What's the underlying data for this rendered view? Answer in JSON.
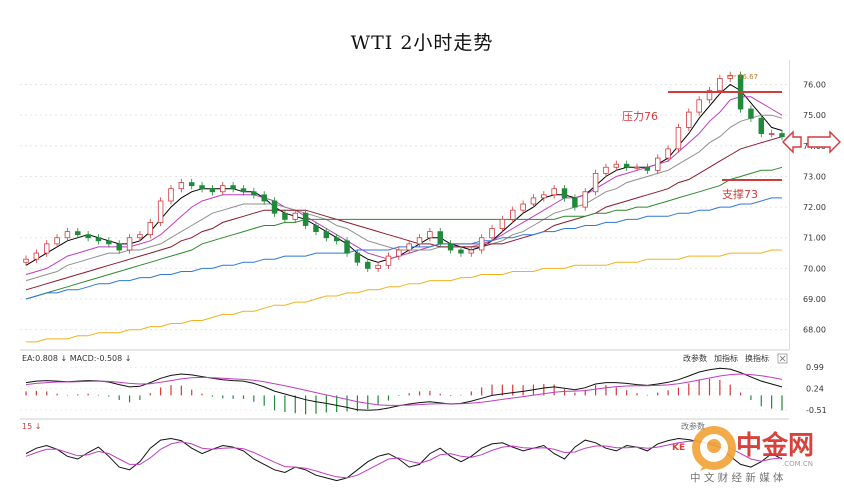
{
  "chart_data": [
    {
      "type": "candlestick",
      "title": "WTI 2小时走势",
      "ylim": [
        67.5,
        76.8
      ],
      "y_ticks": [
        "76.00",
        "75.00",
        "74.00",
        "73.00",
        "72.00",
        "71.00",
        "70.00",
        "69.00",
        "68.00"
      ],
      "high_label": "76.67",
      "annotations": [
        {
          "text": "压力76",
          "level": 76.0
        },
        {
          "text": "支撑73",
          "level": 73.0
        }
      ],
      "close": [
        70.3,
        70.5,
        70.8,
        71.0,
        71.2,
        71.1,
        71.0,
        70.9,
        70.8,
        70.6,
        71.0,
        71.1,
        71.5,
        72.2,
        72.6,
        72.8,
        72.7,
        72.6,
        72.5,
        72.7,
        72.6,
        72.5,
        72.4,
        72.2,
        71.8,
        71.6,
        71.8,
        71.4,
        71.2,
        71.0,
        70.9,
        70.5,
        70.2,
        70.0,
        70.1,
        70.4,
        70.6,
        70.8,
        71.0,
        71.2,
        70.8,
        70.6,
        70.5,
        70.6,
        71.0,
        71.3,
        71.6,
        71.9,
        72.1,
        72.3,
        72.4,
        72.6,
        72.3,
        72.0,
        72.5,
        73.1,
        73.3,
        73.4,
        73.3,
        73.3,
        73.2,
        73.6,
        73.9,
        74.6,
        75.1,
        75.5,
        75.8,
        76.2,
        76.3,
        75.2,
        74.9,
        74.4,
        74.4,
        74.3
      ],
      "sma_series": [
        {
          "color": "#000000",
          "values": [
            70.1,
            70.3,
            70.5,
            70.7,
            70.9,
            71.0,
            71.1,
            71.0,
            70.9,
            70.8,
            70.8,
            70.9,
            71.2,
            71.6,
            72.0,
            72.3,
            72.5,
            72.6,
            72.6,
            72.6,
            72.6,
            72.5,
            72.5,
            72.3,
            72.0,
            71.8,
            71.7,
            71.6,
            71.4,
            71.2,
            71.0,
            70.8,
            70.5,
            70.3,
            70.2,
            70.3,
            70.4,
            70.6,
            70.8,
            71.0,
            71.0,
            70.8,
            70.7,
            70.6,
            70.7,
            70.9,
            71.2,
            71.5,
            71.8,
            72.0,
            72.3,
            72.4,
            72.4,
            72.3,
            72.4,
            72.7,
            73.0,
            73.2,
            73.3,
            73.3,
            73.3,
            73.4,
            73.6,
            74.0,
            74.4,
            74.9,
            75.3,
            75.7,
            76.0,
            75.8,
            75.4,
            75.0,
            74.6,
            74.5
          ]
        },
        {
          "color": "#c13ec1",
          "values": [
            69.8,
            69.9,
            70.0,
            70.2,
            70.4,
            70.5,
            70.6,
            70.7,
            70.7,
            70.7,
            70.7,
            70.8,
            70.9,
            71.1,
            71.4,
            71.7,
            72.0,
            72.2,
            72.3,
            72.4,
            72.4,
            72.4,
            72.4,
            72.3,
            72.2,
            72.0,
            71.9,
            71.7,
            71.5,
            71.3,
            71.1,
            70.9,
            70.7,
            70.5,
            70.4,
            70.3,
            70.4,
            70.5,
            70.6,
            70.7,
            70.8,
            70.8,
            70.8,
            70.8,
            70.8,
            70.9,
            71.1,
            71.3,
            71.5,
            71.7,
            71.9,
            72.1,
            72.3,
            72.3,
            72.4,
            72.6,
            72.8,
            73.0,
            73.1,
            73.2,
            73.3,
            73.4,
            73.5,
            73.8,
            74.1,
            74.4,
            74.8,
            75.1,
            75.5,
            75.6,
            75.6,
            75.4,
            75.2,
            75.0
          ]
        },
        {
          "color": "#8f8f8f",
          "values": [
            69.6,
            69.7,
            69.8,
            69.9,
            70.1,
            70.2,
            70.3,
            70.4,
            70.5,
            70.5,
            70.6,
            70.6,
            70.7,
            70.8,
            71.0,
            71.2,
            71.4,
            71.6,
            71.8,
            71.9,
            72.0,
            72.1,
            72.1,
            72.1,
            72.1,
            72.0,
            71.9,
            71.8,
            71.7,
            71.6,
            71.4,
            71.3,
            71.1,
            70.9,
            70.8,
            70.7,
            70.6,
            70.6,
            70.6,
            70.6,
            70.7,
            70.7,
            70.7,
            70.7,
            70.8,
            70.8,
            70.9,
            71.1,
            71.2,
            71.4,
            71.6,
            71.8,
            71.9,
            72.0,
            72.1,
            72.3,
            72.5,
            72.6,
            72.8,
            72.9,
            73.0,
            73.1,
            73.2,
            73.4,
            73.6,
            73.8,
            74.1,
            74.3,
            74.6,
            74.8,
            74.9,
            75.0,
            75.0,
            74.9
          ]
        },
        {
          "color": "#8b1a2e",
          "values": [
            69.3,
            69.4,
            69.5,
            69.6,
            69.7,
            69.8,
            69.9,
            70.0,
            70.1,
            70.2,
            70.3,
            70.4,
            70.5,
            70.6,
            70.7,
            70.9,
            71.0,
            71.2,
            71.3,
            71.5,
            71.6,
            71.7,
            71.8,
            71.9,
            71.9,
            71.9,
            71.9,
            71.9,
            71.8,
            71.7,
            71.6,
            71.5,
            71.4,
            71.3,
            71.2,
            71.1,
            71.0,
            70.9,
            70.8,
            70.8,
            70.7,
            70.7,
            70.7,
            70.7,
            70.7,
            70.8,
            70.8,
            70.9,
            71.0,
            71.1,
            71.2,
            71.4,
            71.5,
            71.6,
            71.7,
            71.8,
            72.0,
            72.1,
            72.2,
            72.3,
            72.4,
            72.5,
            72.6,
            72.8,
            72.9,
            73.1,
            73.3,
            73.5,
            73.7,
            73.9,
            74.0,
            74.1,
            74.2,
            74.3
          ]
        },
        {
          "color": "#2c8a2c",
          "values": [
            69.0,
            69.1,
            69.2,
            69.3,
            69.4,
            69.5,
            69.6,
            69.7,
            69.8,
            69.9,
            70.0,
            70.1,
            70.2,
            70.3,
            70.4,
            70.5,
            70.6,
            70.8,
            70.9,
            71.0,
            71.1,
            71.2,
            71.3,
            71.4,
            71.4,
            71.5,
            71.5,
            71.6,
            71.6,
            71.6,
            71.6,
            71.6,
            71.6,
            71.6,
            71.6,
            71.6,
            71.6,
            71.6,
            71.6,
            71.6,
            71.6,
            71.6,
            71.6,
            71.6,
            71.6,
            71.6,
            71.6,
            71.6,
            71.6,
            71.6,
            71.6,
            71.6,
            71.7,
            71.7,
            71.7,
            71.8,
            71.8,
            71.9,
            71.9,
            72.0,
            72.0,
            72.1,
            72.2,
            72.3,
            72.4,
            72.5,
            72.6,
            72.7,
            72.9,
            73.0,
            73.1,
            73.2,
            73.2,
            73.3
          ]
        },
        {
          "color": "#2f78d4",
          "values": [
            69.0,
            69.1,
            69.2,
            69.2,
            69.3,
            69.3,
            69.4,
            69.5,
            69.5,
            69.6,
            69.6,
            69.7,
            69.7,
            69.8,
            69.8,
            69.9,
            69.9,
            70.0,
            70.0,
            70.1,
            70.1,
            70.2,
            70.2,
            70.3,
            70.3,
            70.4,
            70.4,
            70.4,
            70.5,
            70.5,
            70.5,
            70.5,
            70.6,
            70.6,
            70.6,
            70.6,
            70.7,
            70.7,
            70.7,
            70.7,
            70.8,
            70.8,
            70.8,
            70.8,
            70.9,
            70.9,
            71.0,
            71.0,
            71.1,
            71.1,
            71.2,
            71.2,
            71.3,
            71.3,
            71.4,
            71.4,
            71.5,
            71.5,
            71.6,
            71.6,
            71.7,
            71.7,
            71.7,
            71.8,
            71.8,
            71.9,
            71.9,
            72.0,
            72.0,
            72.1,
            72.1,
            72.2,
            72.3,
            72.3
          ]
        },
        {
          "color": "#f0b31f",
          "values": [
            67.6,
            67.6,
            67.7,
            67.7,
            67.7,
            67.8,
            67.8,
            67.9,
            67.9,
            67.9,
            68.0,
            68.0,
            68.1,
            68.1,
            68.2,
            68.2,
            68.3,
            68.3,
            68.4,
            68.5,
            68.5,
            68.6,
            68.6,
            68.7,
            68.8,
            68.8,
            68.9,
            68.9,
            69.0,
            69.1,
            69.1,
            69.2,
            69.2,
            69.3,
            69.3,
            69.4,
            69.4,
            69.5,
            69.5,
            69.6,
            69.6,
            69.6,
            69.7,
            69.7,
            69.8,
            69.8,
            69.8,
            69.9,
            69.9,
            69.9,
            70.0,
            70.0,
            70.0,
            70.1,
            70.1,
            70.1,
            70.1,
            70.2,
            70.2,
            70.2,
            70.3,
            70.3,
            70.3,
            70.3,
            70.4,
            70.4,
            70.4,
            70.4,
            70.5,
            70.5,
            70.5,
            70.5,
            70.6,
            70.6
          ]
        }
      ]
    },
    {
      "type": "macd",
      "label_text": "EA:0.808 ↓ MACD:-0.508 ↓",
      "ylim": [
        -0.65,
        1.1
      ],
      "y_ticks": [
        "0.99",
        "0.24",
        "-0.51"
      ],
      "buttons": [
        "改参数",
        "加指标",
        "换指标"
      ],
      "dif": [
        0.45,
        0.5,
        0.52,
        0.5,
        0.48,
        0.5,
        0.52,
        0.51,
        0.47,
        0.38,
        0.3,
        0.32,
        0.45,
        0.6,
        0.7,
        0.75,
        0.72,
        0.66,
        0.6,
        0.55,
        0.52,
        0.5,
        0.42,
        0.3,
        0.15,
        0.05,
        -0.05,
        -0.15,
        -0.22,
        -0.28,
        -0.35,
        -0.42,
        -0.5,
        -0.52,
        -0.5,
        -0.44,
        -0.36,
        -0.3,
        -0.25,
        -0.22,
        -0.26,
        -0.3,
        -0.28,
        -0.2,
        -0.1,
        0.0,
        0.05,
        0.1,
        0.14,
        0.2,
        0.26,
        0.3,
        0.25,
        0.2,
        0.27,
        0.4,
        0.45,
        0.45,
        0.42,
        0.38,
        0.35,
        0.4,
        0.46,
        0.55,
        0.68,
        0.82,
        0.9,
        0.95,
        0.92,
        0.8,
        0.65,
        0.5,
        0.4,
        0.3
      ],
      "dea": [
        0.38,
        0.42,
        0.45,
        0.47,
        0.47,
        0.48,
        0.49,
        0.5,
        0.49,
        0.46,
        0.42,
        0.4,
        0.41,
        0.46,
        0.52,
        0.58,
        0.62,
        0.63,
        0.62,
        0.6,
        0.58,
        0.56,
        0.53,
        0.48,
        0.41,
        0.34,
        0.26,
        0.18,
        0.1,
        0.02,
        -0.06,
        -0.14,
        -0.22,
        -0.28,
        -0.33,
        -0.35,
        -0.35,
        -0.34,
        -0.32,
        -0.3,
        -0.29,
        -0.29,
        -0.29,
        -0.27,
        -0.24,
        -0.19,
        -0.14,
        -0.09,
        -0.04,
        0.01,
        0.06,
        0.11,
        0.14,
        0.15,
        0.17,
        0.22,
        0.27,
        0.31,
        0.33,
        0.34,
        0.34,
        0.35,
        0.37,
        0.41,
        0.47,
        0.54,
        0.61,
        0.68,
        0.73,
        0.75,
        0.73,
        0.69,
        0.63,
        0.56
      ]
    },
    {
      "type": "kdj",
      "label_text": "15 ↓",
      "k": [
        60,
        70,
        75,
        68,
        55,
        50,
        62,
        72,
        55,
        35,
        30,
        45,
        70,
        85,
        88,
        84,
        70,
        60,
        68,
        75,
        72,
        65,
        50,
        40,
        30,
        25,
        35,
        30,
        20,
        15,
        10,
        15,
        30,
        45,
        55,
        60,
        50,
        35,
        40,
        60,
        70,
        55,
        45,
        55,
        70,
        78,
        80,
        72,
        65,
        70,
        75,
        60,
        50,
        72,
        85,
        80,
        70,
        65,
        75,
        72,
        65,
        78,
        84,
        88,
        86,
        82,
        78,
        72,
        55,
        40,
        35,
        45,
        60,
        50
      ],
      "d": [
        55,
        62,
        68,
        68,
        62,
        56,
        58,
        64,
        60,
        50,
        40,
        40,
        52,
        68,
        78,
        82,
        78,
        70,
        68,
        70,
        71,
        69,
        62,
        53,
        44,
        36,
        35,
        33,
        28,
        22,
        17,
        15,
        20,
        30,
        40,
        50,
        52,
        46,
        42,
        48,
        58,
        60,
        55,
        53,
        58,
        66,
        72,
        74,
        71,
        70,
        71,
        68,
        62,
        63,
        70,
        74,
        74,
        71,
        71,
        72,
        70,
        72,
        76,
        80,
        83,
        83,
        81,
        77,
        70,
        60,
        50,
        46,
        50,
        52
      ]
    }
  ],
  "watermark": {
    "brand": "中金网",
    "tagline": "中 文 财 经 新 媒 体",
    "site": ".COM.CN",
    "badge": "KE",
    "overlay": "改参数"
  }
}
